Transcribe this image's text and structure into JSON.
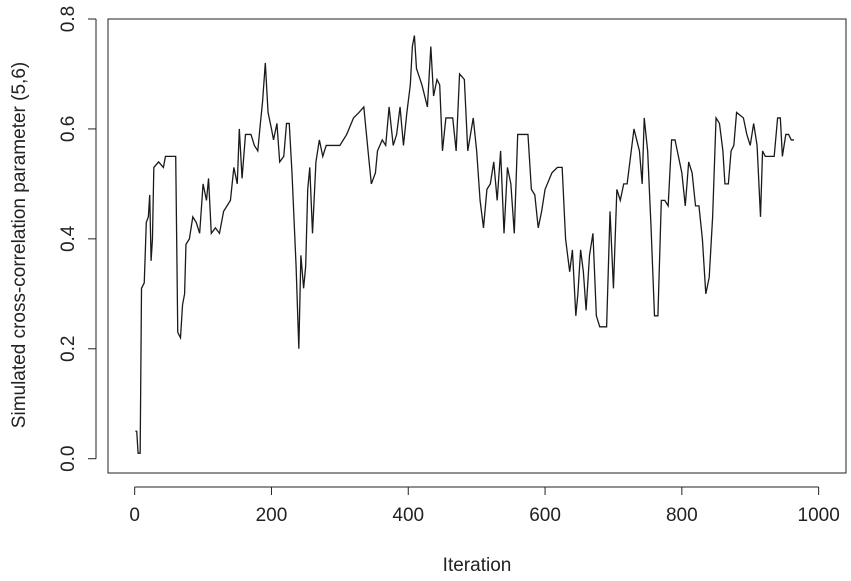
{
  "chart_data": {
    "type": "line",
    "xlabel": "Iteration",
    "ylabel": "Simulated cross-correlation parameter (5,6)",
    "color": "#1a1a1a",
    "xlim": [
      -39,
      1040
    ],
    "ylim": [
      -0.026,
      0.8
    ],
    "xticks": [
      0,
      200,
      400,
      600,
      800,
      1000
    ],
    "yticks": [
      {
        "value": 0,
        "label": "0.0"
      },
      0.2,
      0.4,
      0.6,
      0.8
    ],
    "x": [
      1,
      3,
      5,
      8,
      10,
      14,
      17,
      20,
      22,
      24,
      26,
      28,
      35,
      42,
      45,
      60,
      63,
      67,
      70,
      73,
      75,
      80,
      85,
      90,
      95,
      100,
      105,
      108,
      112,
      118,
      124,
      130,
      140,
      145,
      150,
      153,
      157,
      162,
      170,
      175,
      180,
      183,
      187,
      191,
      195,
      200,
      203,
      208,
      212,
      218,
      222,
      226,
      230,
      236,
      240,
      243,
      247,
      250,
      253,
      256,
      260,
      265,
      270,
      275,
      280,
      300,
      310,
      320,
      328,
      335,
      342,
      346,
      352,
      355,
      362,
      367,
      372,
      378,
      383,
      388,
      393,
      398,
      403,
      406,
      409,
      412,
      420,
      428,
      433,
      437,
      442,
      446,
      450,
      455,
      465,
      470,
      475,
      482,
      487,
      495,
      500,
      505,
      510,
      515,
      520,
      525,
      530,
      535,
      540,
      545,
      550,
      555,
      560,
      575,
      580,
      585,
      590,
      595,
      600,
      610,
      618,
      625,
      630,
      636,
      640,
      645,
      648,
      652,
      656,
      660,
      665,
      670,
      675,
      680,
      690,
      695,
      700,
      705,
      710,
      715,
      720,
      725,
      730,
      738,
      742,
      745,
      750,
      755,
      760,
      765,
      770,
      775,
      780,
      785,
      790,
      795,
      800,
      805,
      810,
      815,
      820,
      825,
      830,
      835,
      840,
      845,
      850,
      855,
      860,
      863,
      868,
      872,
      876,
      880,
      890,
      895,
      900,
      905,
      910,
      915,
      918,
      922,
      935,
      940,
      944,
      947,
      952,
      956,
      960,
      964
    ],
    "values": [
      0.05,
      0.05,
      0.01,
      0.01,
      0.31,
      0.32,
      0.43,
      0.44,
      0.48,
      0.36,
      0.4,
      0.53,
      0.54,
      0.53,
      0.55,
      0.55,
      0.23,
      0.22,
      0.28,
      0.3,
      0.39,
      0.4,
      0.44,
      0.43,
      0.41,
      0.5,
      0.47,
      0.51,
      0.41,
      0.42,
      0.41,
      0.45,
      0.47,
      0.53,
      0.5,
      0.6,
      0.51,
      0.59,
      0.59,
      0.57,
      0.56,
      0.6,
      0.65,
      0.72,
      0.63,
      0.6,
      0.58,
      0.61,
      0.54,
      0.55,
      0.61,
      0.61,
      0.52,
      0.35,
      0.2,
      0.37,
      0.31,
      0.35,
      0.49,
      0.53,
      0.41,
      0.54,
      0.58,
      0.55,
      0.57,
      0.57,
      0.59,
      0.62,
      0.63,
      0.64,
      0.55,
      0.5,
      0.52,
      0.56,
      0.58,
      0.57,
      0.64,
      0.57,
      0.59,
      0.64,
      0.57,
      0.63,
      0.68,
      0.75,
      0.77,
      0.71,
      0.68,
      0.64,
      0.75,
      0.66,
      0.69,
      0.68,
      0.56,
      0.62,
      0.62,
      0.56,
      0.7,
      0.69,
      0.56,
      0.62,
      0.56,
      0.47,
      0.42,
      0.49,
      0.5,
      0.54,
      0.47,
      0.56,
      0.41,
      0.53,
      0.5,
      0.41,
      0.59,
      0.59,
      0.49,
      0.48,
      0.42,
      0.45,
      0.49,
      0.52,
      0.53,
      0.53,
      0.4,
      0.34,
      0.38,
      0.26,
      0.3,
      0.38,
      0.34,
      0.27,
      0.37,
      0.41,
      0.26,
      0.24,
      0.24,
      0.45,
      0.31,
      0.49,
      0.47,
      0.5,
      0.5,
      0.55,
      0.6,
      0.56,
      0.5,
      0.62,
      0.56,
      0.42,
      0.26,
      0.26,
      0.47,
      0.47,
      0.46,
      0.58,
      0.58,
      0.55,
      0.52,
      0.46,
      0.54,
      0.52,
      0.46,
      0.46,
      0.4,
      0.3,
      0.33,
      0.44,
      0.62,
      0.61,
      0.56,
      0.5,
      0.5,
      0.56,
      0.57,
      0.63,
      0.62,
      0.59,
      0.57,
      0.61,
      0.57,
      0.44,
      0.56,
      0.55,
      0.55,
      0.62,
      0.62,
      0.55,
      0.59,
      0.59,
      0.58,
      0.58
    ]
  }
}
